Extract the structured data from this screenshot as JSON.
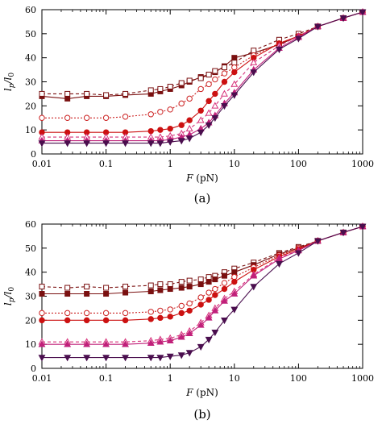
{
  "chart_data": [
    {
      "type": "line",
      "panel_label": "(a)",
      "xlabel_var": "F",
      "xlabel_unit": "(pN)",
      "ylabel_main": "l",
      "ylabel_sub1": "p",
      "ylabel_mid": "/l",
      "ylabel_sub2": "0",
      "xscale": "log",
      "xlim": [
        0.01,
        1000
      ],
      "ylim": [
        0,
        60
      ],
      "x_ticks": [
        0.01,
        0.1,
        1,
        10,
        100,
        1000
      ],
      "x_tick_labels": [
        "0.01",
        "0.1",
        "1",
        "10",
        "100",
        "1000"
      ],
      "y_ticks": [
        0,
        10,
        20,
        30,
        40,
        50,
        60
      ],
      "y_tick_labels": [
        "0",
        "10",
        "20",
        "30",
        "40",
        "50",
        "60"
      ],
      "grid": false,
      "legend": "none",
      "series": [
        {
          "color": "#7a1010",
          "marker": "square-filled",
          "line": "solid",
          "x": [
            0.01,
            0.025,
            0.05,
            0.1,
            0.2,
            0.5,
            0.7,
            1,
            1.5,
            2,
            3,
            4,
            5,
            7,
            10,
            20,
            50,
            100,
            200,
            500,
            1000
          ],
          "y": [
            24,
            23,
            24,
            24,
            24.5,
            25,
            26,
            27,
            28.5,
            30,
            32,
            33,
            34,
            36.5,
            40,
            42,
            45.5,
            49,
            53,
            56.5,
            59
          ]
        },
        {
          "color": "#7a1010",
          "marker": "square-open",
          "line": "dashed",
          "x": [
            0.01,
            0.025,
            0.05,
            0.1,
            0.2,
            0.5,
            0.7,
            1,
            1.5,
            2,
            3,
            4,
            5,
            7,
            10,
            20,
            50,
            100,
            200,
            500,
            1000
          ],
          "y": [
            25,
            25,
            25,
            24.5,
            25,
            26.5,
            27,
            28,
            29.5,
            30.5,
            31.5,
            33,
            34.5,
            36,
            38,
            43,
            47.5,
            50,
            53,
            56.5,
            59
          ]
        },
        {
          "color": "#cc2222",
          "marker": "circle-open",
          "line": "dotted",
          "x": [
            0.01,
            0.025,
            0.05,
            0.1,
            0.2,
            0.5,
            0.7,
            1,
            1.5,
            2,
            3,
            4,
            5,
            7,
            10,
            20,
            50,
            100,
            200,
            500,
            1000
          ],
          "y": [
            15,
            15,
            15,
            15,
            15.5,
            16.5,
            17.5,
            18.5,
            21,
            23,
            27,
            29,
            31,
            33.5,
            36,
            41,
            46,
            49,
            53,
            56.5,
            59
          ]
        },
        {
          "color": "#cc1111",
          "marker": "circle-filled",
          "line": "solid",
          "x": [
            0.01,
            0.025,
            0.05,
            0.1,
            0.2,
            0.5,
            0.7,
            1,
            1.5,
            2,
            3,
            4,
            5,
            7,
            10,
            20,
            50,
            100,
            200,
            500,
            1000
          ],
          "y": [
            9,
            9,
            9,
            9,
            9,
            9.5,
            10,
            10.5,
            12,
            14,
            18,
            22,
            25,
            30,
            34,
            40,
            46,
            49,
            53,
            56.5,
            59
          ]
        },
        {
          "color": "#d6307a",
          "marker": "triangle-up-open",
          "line": "dashed",
          "x": [
            0.01,
            0.025,
            0.05,
            0.1,
            0.2,
            0.5,
            0.7,
            1,
            1.5,
            2,
            3,
            4,
            5,
            7,
            10,
            20,
            50,
            100,
            200,
            500,
            1000
          ],
          "y": [
            7,
            7,
            7,
            7,
            7,
            7,
            7,
            7.5,
            8.5,
            10.5,
            14,
            17,
            20,
            25,
            29,
            38,
            45,
            49,
            53,
            56.5,
            59
          ]
        },
        {
          "color": "#c0207a",
          "marker": "triangle-up-filled",
          "line": "solid",
          "x": [
            0.01,
            0.025,
            0.05,
            0.1,
            0.2,
            0.5,
            0.7,
            1,
            1.5,
            2,
            3,
            4,
            5,
            7,
            10,
            20,
            50,
            100,
            200,
            500,
            1000
          ],
          "y": [
            5.5,
            5.5,
            5.5,
            5.5,
            5.5,
            5.5,
            5.5,
            6,
            7,
            8,
            10.5,
            13,
            16,
            21,
            25.5,
            35,
            44,
            48.5,
            53,
            56.5,
            59
          ]
        },
        {
          "color": "#4a0e4e",
          "marker": "triangle-down-filled",
          "line": "solid",
          "x": [
            0.01,
            0.025,
            0.05,
            0.1,
            0.2,
            0.5,
            0.7,
            1,
            1.5,
            2,
            3,
            4,
            5,
            7,
            10,
            20,
            50,
            100,
            200,
            500,
            1000
          ],
          "y": [
            4.5,
            4.5,
            4.5,
            4.5,
            4.5,
            4.5,
            4.5,
            5,
            5.5,
            6.5,
            9,
            12,
            15,
            20,
            24.5,
            34,
            43.5,
            48,
            53,
            56.5,
            59
          ]
        }
      ]
    },
    {
      "type": "line",
      "panel_label": "(b)",
      "xlabel_var": "F",
      "xlabel_unit": "(pN)",
      "ylabel_main": "l",
      "ylabel_sub1": "p",
      "ylabel_mid": "/l",
      "ylabel_sub2": "0",
      "xscale": "log",
      "xlim": [
        0.01,
        1000
      ],
      "ylim": [
        0,
        60
      ],
      "x_ticks": [
        0.01,
        0.1,
        1,
        10,
        100,
        1000
      ],
      "x_tick_labels": [
        "0.01",
        "0.1",
        "1",
        "10",
        "100",
        "1000"
      ],
      "y_ticks": [
        0,
        10,
        20,
        30,
        40,
        50,
        60
      ],
      "y_tick_labels": [
        "0",
        "10",
        "20",
        "30",
        "40",
        "50",
        "60"
      ],
      "grid": false,
      "legend": "none",
      "series": [
        {
          "color": "#7a1010",
          "marker": "square-open",
          "line": "dashed",
          "x": [
            0.01,
            0.025,
            0.05,
            0.1,
            0.2,
            0.5,
            0.7,
            1,
            1.5,
            2,
            3,
            4,
            5,
            7,
            10,
            20,
            50,
            100,
            200,
            500,
            1000
          ],
          "y": [
            34,
            33.5,
            34,
            33.5,
            34,
            34.5,
            35,
            35,
            36,
            36.5,
            37,
            38,
            38.5,
            40,
            41.5,
            44,
            48,
            50.5,
            53,
            56.5,
            59
          ]
        },
        {
          "color": "#7a1010",
          "marker": "square-filled",
          "line": "solid",
          "x": [
            0.01,
            0.025,
            0.05,
            0.1,
            0.2,
            0.5,
            0.7,
            1,
            1.5,
            2,
            3,
            4,
            5,
            7,
            10,
            20,
            50,
            100,
            200,
            500,
            1000
          ],
          "y": [
            31,
            31,
            31,
            31,
            31.5,
            32,
            32.5,
            33,
            33.5,
            34,
            35,
            36,
            37,
            38.5,
            40,
            43,
            47.5,
            50,
            53,
            56.5,
            59
          ]
        },
        {
          "color": "#cc2222",
          "marker": "circle-open",
          "line": "dotted",
          "x": [
            0.01,
            0.025,
            0.05,
            0.1,
            0.2,
            0.5,
            0.7,
            1,
            1.5,
            2,
            3,
            4,
            5,
            7,
            10,
            20,
            50,
            100,
            200,
            500,
            1000
          ],
          "y": [
            23,
            23,
            23,
            23,
            23,
            23.5,
            24,
            24.5,
            26,
            27,
            29.5,
            31.5,
            33,
            35.5,
            38,
            42,
            47,
            50,
            53,
            56.5,
            59
          ]
        },
        {
          "color": "#cc1111",
          "marker": "circle-filled",
          "line": "solid",
          "x": [
            0.01,
            0.025,
            0.05,
            0.1,
            0.2,
            0.5,
            0.7,
            1,
            1.5,
            2,
            3,
            4,
            5,
            7,
            10,
            20,
            50,
            100,
            200,
            500,
            1000
          ],
          "y": [
            20,
            20,
            20,
            20,
            20,
            20.5,
            21,
            21.5,
            23,
            24,
            26.5,
            28.5,
            30.5,
            33,
            36,
            41,
            46.5,
            49.5,
            53,
            56.5,
            59
          ]
        },
        {
          "color": "#d6307a",
          "marker": "triangle-up-open",
          "line": "dashed",
          "x": [
            0.01,
            0.025,
            0.05,
            0.1,
            0.2,
            0.5,
            0.7,
            1,
            1.5,
            2,
            3,
            4,
            5,
            7,
            10,
            20,
            50,
            100,
            200,
            500,
            1000
          ],
          "y": [
            11,
            11,
            11,
            11,
            11,
            11.5,
            12,
            12.5,
            14,
            15.5,
            19,
            22,
            25,
            29,
            32,
            39,
            46,
            49,
            53,
            56.5,
            59
          ]
        },
        {
          "color": "#c0207a",
          "marker": "triangle-up-filled",
          "line": "solid",
          "x": [
            0.01,
            0.025,
            0.05,
            0.1,
            0.2,
            0.5,
            0.7,
            1,
            1.5,
            2,
            3,
            4,
            5,
            7,
            10,
            20,
            50,
            100,
            200,
            500,
            1000
          ],
          "y": [
            10,
            10,
            10,
            10,
            10,
            10.5,
            11,
            11.5,
            13,
            14.5,
            18,
            21,
            24,
            28,
            31,
            38.5,
            45.5,
            49,
            53,
            56.5,
            59
          ]
        },
        {
          "color": "#4a0e4e",
          "marker": "triangle-down-filled",
          "line": "solid",
          "x": [
            0.01,
            0.025,
            0.05,
            0.1,
            0.2,
            0.5,
            0.7,
            1,
            1.5,
            2,
            3,
            4,
            5,
            7,
            10,
            20,
            50,
            100,
            200,
            500,
            1000
          ],
          "y": [
            4.5,
            4.5,
            4.5,
            4.5,
            4.5,
            4.5,
            4.5,
            5,
            5.5,
            6.5,
            9,
            12,
            15,
            20,
            24.5,
            34,
            43.5,
            48,
            53,
            56.5,
            59
          ]
        }
      ]
    }
  ]
}
